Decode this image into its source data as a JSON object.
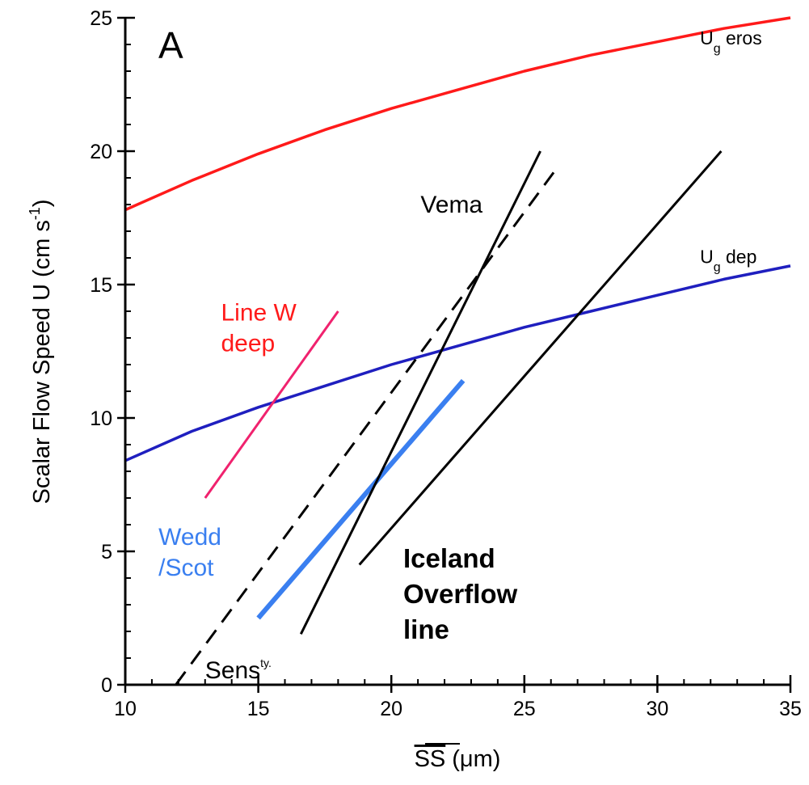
{
  "panel_label": "A",
  "colors": {
    "ug_eros": "#ff1a1a",
    "ug_dep": "#1f1fbf",
    "line_w": "#f0226e",
    "wedd": "#3a7ff0",
    "black": "#000000"
  },
  "chart_data": {
    "type": "line",
    "title": "",
    "xlabel": {
      "bar": "SS",
      "unit": "(μm)"
    },
    "ylabel": {
      "main": "Scalar Flow Speed  U (cm s",
      "sup": "-1",
      "close": ")"
    },
    "xlim": [
      10,
      35
    ],
    "ylim": [
      0,
      25
    ],
    "x_ticks": [
      10,
      15,
      20,
      25,
      30,
      35
    ],
    "y_ticks": [
      0,
      5,
      10,
      15,
      20,
      25
    ],
    "x_minor_step": 1,
    "y_minor_step": 1,
    "grid": false,
    "legend": "none",
    "series": [
      {
        "id": "ug-eros",
        "color": "#ff1a1a",
        "dash": false,
        "width": 3.5,
        "points": [
          [
            10,
            17.8
          ],
          [
            12.5,
            18.9
          ],
          [
            15,
            19.9
          ],
          [
            17.5,
            20.8
          ],
          [
            20,
            21.6
          ],
          [
            22.5,
            22.3
          ],
          [
            25,
            23.0
          ],
          [
            27.5,
            23.6
          ],
          [
            30,
            24.1
          ],
          [
            32.5,
            24.6
          ],
          [
            35,
            25.0
          ]
        ]
      },
      {
        "id": "ug-dep",
        "color": "#1f1fbf",
        "dash": false,
        "width": 3.5,
        "points": [
          [
            10,
            8.4
          ],
          [
            12.5,
            9.5
          ],
          [
            15,
            10.4
          ],
          [
            17.5,
            11.2
          ],
          [
            20,
            12.0
          ],
          [
            22.5,
            12.7
          ],
          [
            25,
            13.4
          ],
          [
            27.5,
            14.0
          ],
          [
            30,
            14.6
          ],
          [
            32.5,
            15.2
          ],
          [
            35,
            15.7
          ]
        ]
      },
      {
        "id": "line-w-deep",
        "color": "#f0226e",
        "dash": false,
        "width": 3,
        "points": [
          [
            13,
            7.0
          ],
          [
            18,
            14.0
          ]
        ]
      },
      {
        "id": "wedd-scot",
        "color": "#3a7ff0",
        "dash": false,
        "width": 6,
        "points": [
          [
            15,
            2.5
          ],
          [
            22.7,
            11.4
          ]
        ]
      },
      {
        "id": "sensitivity",
        "color": "#000000",
        "dash": true,
        "width": 3,
        "points": [
          [
            11.9,
            0
          ],
          [
            26.1,
            19.2
          ]
        ]
      },
      {
        "id": "vema",
        "color": "#000000",
        "dash": false,
        "width": 3,
        "points": [
          [
            16.6,
            1.9
          ],
          [
            25.6,
            20.0
          ]
        ]
      },
      {
        "id": "iceland-overflow",
        "color": "#000000",
        "dash": false,
        "width": 3,
        "points": [
          [
            18.8,
            4.5
          ],
          [
            32.4,
            20.0
          ]
        ]
      }
    ],
    "annotations": [
      {
        "id": "ann-ug-eros",
        "main": "U",
        "sub": "g",
        "rest": " eros",
        "x": 31.6,
        "y": 24.0,
        "size": "small"
      },
      {
        "id": "ann-ug-dep",
        "main": "U",
        "sub": "g",
        "rest": " dep",
        "x": 31.6,
        "y": 15.8,
        "size": "small"
      },
      {
        "id": "ann-vema",
        "lines": [
          "Vema"
        ],
        "x": 21.1,
        "y": 17.7,
        "color": "#000000",
        "size": "normal"
      },
      {
        "id": "ann-line-w",
        "lines": [
          "Line W",
          "deep"
        ],
        "x": 13.6,
        "y": 13.65,
        "color": "#ff1a1a",
        "size": "normal"
      },
      {
        "id": "ann-wedd",
        "lines": [
          "Wedd",
          "/Scot"
        ],
        "x": 11.25,
        "y": 5.25,
        "color": "#3a7ff0",
        "size": "normal"
      },
      {
        "id": "ann-iceland",
        "lines": [
          "Iceland",
          "Overflow",
          "line"
        ],
        "x": 20.45,
        "y": 4.4,
        "color": "#000000",
        "size": "bold"
      },
      {
        "id": "ann-sens",
        "main": "Sens",
        "sup": "ty.",
        "x": 13.0,
        "y": 0.25,
        "size": "normal"
      }
    ]
  }
}
